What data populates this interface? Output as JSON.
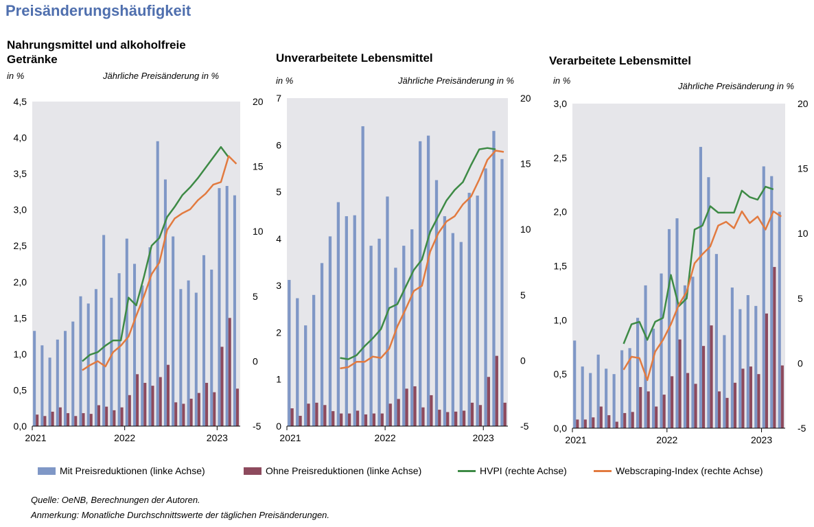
{
  "title": "Preisänderungshäufigkeit",
  "legend": {
    "blue_label": "Mit Preisreduktionen (linke Achse)",
    "red_label": "Ohne Preisreduktionen (linke Achse)",
    "green_label": "HVPI (rechte Achse)",
    "orange_label": "Webscraping-Index (rechte Achse)"
  },
  "colors": {
    "blue": "#7f97c6",
    "red": "#8d4a5d",
    "green": "#3d8a45",
    "orange": "#e27a3f",
    "grid_bg": "#e6e6ea"
  },
  "footer": {
    "source": "Quelle: OeNB, Berechnungen der Autoren.",
    "note": "Anmerkung: Monatliche Durchschnittswerte der täglichen Preisänderungen."
  },
  "chart_data": [
    {
      "type": "bar",
      "title": "Nahrungsmittel und alkoholfreie Getränke",
      "title_lines": [
        "Nahrungsmittel und alkoholfreie",
        "Getränke"
      ],
      "ylabel": "in %",
      "y2label": "Jährliche Preisänderung in %",
      "x_tick_labels": [
        "2021",
        "2022",
        "2023"
      ],
      "x_tick_month_index": [
        0,
        12,
        24
      ],
      "ylim": [
        0,
        4.5
      ],
      "yticks": [
        "0,0",
        "0,5",
        "1,0",
        "1,5",
        "2,0",
        "2,5",
        "3,0",
        "3,5",
        "4,0",
        "4,5"
      ],
      "y2lim": [
        -5,
        20
      ],
      "y2ticks": [
        "-5",
        "0",
        "5",
        "10",
        "15",
        "20"
      ],
      "months": [
        "2021-01",
        "2021-02",
        "2021-03",
        "2021-04",
        "2021-05",
        "2021-06",
        "2021-07",
        "2021-08",
        "2021-09",
        "2021-10",
        "2021-11",
        "2021-12",
        "2022-01",
        "2022-02",
        "2022-03",
        "2022-04",
        "2022-05",
        "2022-06",
        "2022-07",
        "2022-08",
        "2022-09",
        "2022-10",
        "2022-11",
        "2022-12",
        "2023-01",
        "2023-02",
        "2023-03"
      ],
      "series": [
        {
          "name": "Mit Preisreduktionen (linke Achse)",
          "axis": "left",
          "kind": "bar",
          "values": [
            1.32,
            1.12,
            0.95,
            1.2,
            1.32,
            1.45,
            1.8,
            1.7,
            1.9,
            2.65,
            1.78,
            2.12,
            2.6,
            2.25,
            1.95,
            2.48,
            3.95,
            3.42,
            2.63,
            1.9,
            2.02,
            1.85,
            2.37,
            2.17,
            3.3,
            3.33,
            3.2
          ]
        },
        {
          "name": "Ohne Preisreduktionen (linke Achse)",
          "axis": "left",
          "kind": "bar",
          "values": [
            0.16,
            0.14,
            0.2,
            0.26,
            0.18,
            0.14,
            0.18,
            0.17,
            0.29,
            0.27,
            0.22,
            0.26,
            0.43,
            0.72,
            0.6,
            0.56,
            0.68,
            0.85,
            0.33,
            0.31,
            0.38,
            0.46,
            0.6,
            0.47,
            1.1,
            1.5,
            0.52
          ]
        },
        {
          "name": "HVPI (rechte Achse)",
          "axis": "right",
          "kind": "line",
          "values": [
            null,
            null,
            null,
            null,
            null,
            null,
            0.0,
            0.5,
            0.7,
            1.2,
            1.6,
            1.6,
            4.9,
            4.3,
            6.5,
            8.9,
            9.5,
            11.1,
            11.9,
            12.8,
            13.4,
            14.1,
            14.9,
            15.7,
            16.5,
            15.7,
            null
          ]
        },
        {
          "name": "Webscraping-Index (rechte Achse)",
          "axis": "right",
          "kind": "line",
          "values": [
            null,
            null,
            null,
            null,
            null,
            null,
            -0.7,
            -0.3,
            0.0,
            -0.4,
            0.7,
            1.2,
            1.9,
            3.5,
            5.0,
            6.7,
            7.6,
            10.1,
            11.0,
            11.4,
            11.7,
            12.4,
            12.9,
            13.6,
            13.8,
            15.8,
            15.2
          ]
        }
      ]
    },
    {
      "type": "bar",
      "title": "Unverarbeitete Lebensmittel",
      "title_lines": [
        "Unverarbeitete Lebensmittel"
      ],
      "ylabel": "in %",
      "y2label": "Jährliche Preisänderung in %",
      "x_tick_labels": [
        "2021",
        "2022",
        "2023"
      ],
      "x_tick_month_index": [
        0,
        12,
        24
      ],
      "ylim": [
        0,
        7
      ],
      "yticks": [
        "0",
        "1",
        "2",
        "3",
        "4",
        "5",
        "6",
        "7"
      ],
      "y2lim": [
        -5,
        20
      ],
      "y2ticks": [
        "-5",
        "0",
        "5",
        "10",
        "15",
        "20"
      ],
      "months": [
        "2021-01",
        "2021-02",
        "2021-03",
        "2021-04",
        "2021-05",
        "2021-06",
        "2021-07",
        "2021-08",
        "2021-09",
        "2021-10",
        "2021-11",
        "2021-12",
        "2022-01",
        "2022-02",
        "2022-03",
        "2022-04",
        "2022-05",
        "2022-06",
        "2022-07",
        "2022-08",
        "2022-09",
        "2022-10",
        "2022-11",
        "2022-12",
        "2023-01",
        "2023-02",
        "2023-03"
      ],
      "series": [
        {
          "name": "Mit Preisreduktionen (linke Achse)",
          "axis": "left",
          "kind": "bar",
          "values": [
            3.12,
            2.73,
            2.15,
            2.8,
            3.48,
            4.05,
            4.78,
            4.48,
            4.5,
            6.4,
            3.85,
            4.0,
            4.9,
            3.38,
            3.85,
            4.2,
            6.08,
            6.2,
            5.25,
            4.48,
            4.12,
            3.93,
            4.98,
            4.92,
            5.5,
            6.3,
            5.7
          ]
        },
        {
          "name": "Ohne Preisreduktionen (linke Achse)",
          "axis": "left",
          "kind": "bar",
          "values": [
            0.38,
            0.22,
            0.48,
            0.5,
            0.45,
            0.32,
            0.27,
            0.27,
            0.33,
            0.25,
            0.27,
            0.27,
            0.48,
            0.58,
            0.8,
            0.85,
            0.4,
            0.66,
            0.35,
            0.3,
            0.31,
            0.33,
            0.5,
            0.45,
            1.05,
            1.5,
            0.5
          ]
        },
        {
          "name": "HVPI (rechte Achse)",
          "axis": "right",
          "kind": "line",
          "values": [
            null,
            null,
            null,
            null,
            null,
            null,
            0.2,
            0.1,
            0.4,
            1.1,
            1.7,
            2.4,
            4.0,
            4.3,
            5.6,
            6.9,
            7.7,
            9.8,
            11.0,
            12.2,
            13.0,
            13.6,
            14.9,
            16.1,
            16.2,
            16.1,
            null
          ]
        },
        {
          "name": "Webscraping-Index (rechte Achse)",
          "axis": "right",
          "kind": "line",
          "values": [
            null,
            null,
            null,
            null,
            null,
            null,
            -0.6,
            -0.5,
            -0.1,
            -0.1,
            0.3,
            0.2,
            0.9,
            2.6,
            3.9,
            5.3,
            5.7,
            8.3,
            9.7,
            10.6,
            11.0,
            11.9,
            12.5,
            13.8,
            15.3,
            16.0,
            15.9
          ]
        }
      ]
    },
    {
      "type": "bar",
      "title": "Verarbeitete Lebensmittel",
      "title_lines": [
        "Verarbeitete Lebensmittel"
      ],
      "ylabel": "in %",
      "y2label": "Jährliche Preisänderung in %",
      "x_tick_labels": [
        "2021",
        "2022",
        "2023"
      ],
      "x_tick_month_index": [
        0,
        12,
        24
      ],
      "ylim": [
        0,
        3.0
      ],
      "yticks": [
        "0,0",
        "0,5",
        "1,0",
        "1,5",
        "2,0",
        "2,5",
        "3,0"
      ],
      "y2lim": [
        -5,
        20
      ],
      "y2ticks": [
        "-5",
        "0",
        "5",
        "10",
        "15",
        "20"
      ],
      "months": [
        "2021-01",
        "2021-02",
        "2021-03",
        "2021-04",
        "2021-05",
        "2021-06",
        "2021-07",
        "2021-08",
        "2021-09",
        "2021-10",
        "2021-11",
        "2021-12",
        "2022-01",
        "2022-02",
        "2022-03",
        "2022-04",
        "2022-05",
        "2022-06",
        "2022-07",
        "2022-08",
        "2022-09",
        "2022-10",
        "2022-11",
        "2022-12",
        "2023-01",
        "2023-02",
        "2023-03"
      ],
      "series": [
        {
          "name": "Mit Preisreduktionen (linke Achse)",
          "axis": "left",
          "kind": "bar",
          "values": [
            0.81,
            0.57,
            0.51,
            0.68,
            0.55,
            0.5,
            0.72,
            0.74,
            1.02,
            1.32,
            0.92,
            1.43,
            1.84,
            1.94,
            1.32,
            1.4,
            2.6,
            2.32,
            1.61,
            0.86,
            1.3,
            1.1,
            1.23,
            1.13,
            2.42,
            2.33,
            2.0
          ]
        },
        {
          "name": "Ohne Preisreduktionen (linke Achse)",
          "axis": "left",
          "kind": "bar",
          "values": [
            0.08,
            0.08,
            0.1,
            0.2,
            0.12,
            0.06,
            0.14,
            0.15,
            0.38,
            0.34,
            0.2,
            0.31,
            0.48,
            0.82,
            0.51,
            0.41,
            0.76,
            0.95,
            0.34,
            0.28,
            0.42,
            0.55,
            0.57,
            0.5,
            1.06,
            1.49,
            0.58
          ]
        },
        {
          "name": "HVPI (rechte Achse)",
          "axis": "right",
          "kind": "line",
          "values": [
            null,
            null,
            null,
            null,
            null,
            null,
            1.5,
            3.0,
            3.2,
            1.8,
            3.2,
            3.5,
            6.8,
            4.4,
            5.0,
            10.3,
            10.6,
            12.1,
            11.6,
            11.6,
            11.6,
            13.3,
            12.8,
            12.6,
            13.6,
            13.4,
            null
          ]
        },
        {
          "name": "Webscraping-Index (rechte Achse)",
          "axis": "right",
          "kind": "line",
          "values": [
            null,
            null,
            null,
            null,
            null,
            null,
            -0.5,
            0.5,
            0.4,
            -1.3,
            0.9,
            1.8,
            3.0,
            4.5,
            5.5,
            7.7,
            8.4,
            9.0,
            10.6,
            10.9,
            10.4,
            11.7,
            10.8,
            11.3,
            10.3,
            11.7,
            11.3
          ]
        }
      ]
    }
  ]
}
